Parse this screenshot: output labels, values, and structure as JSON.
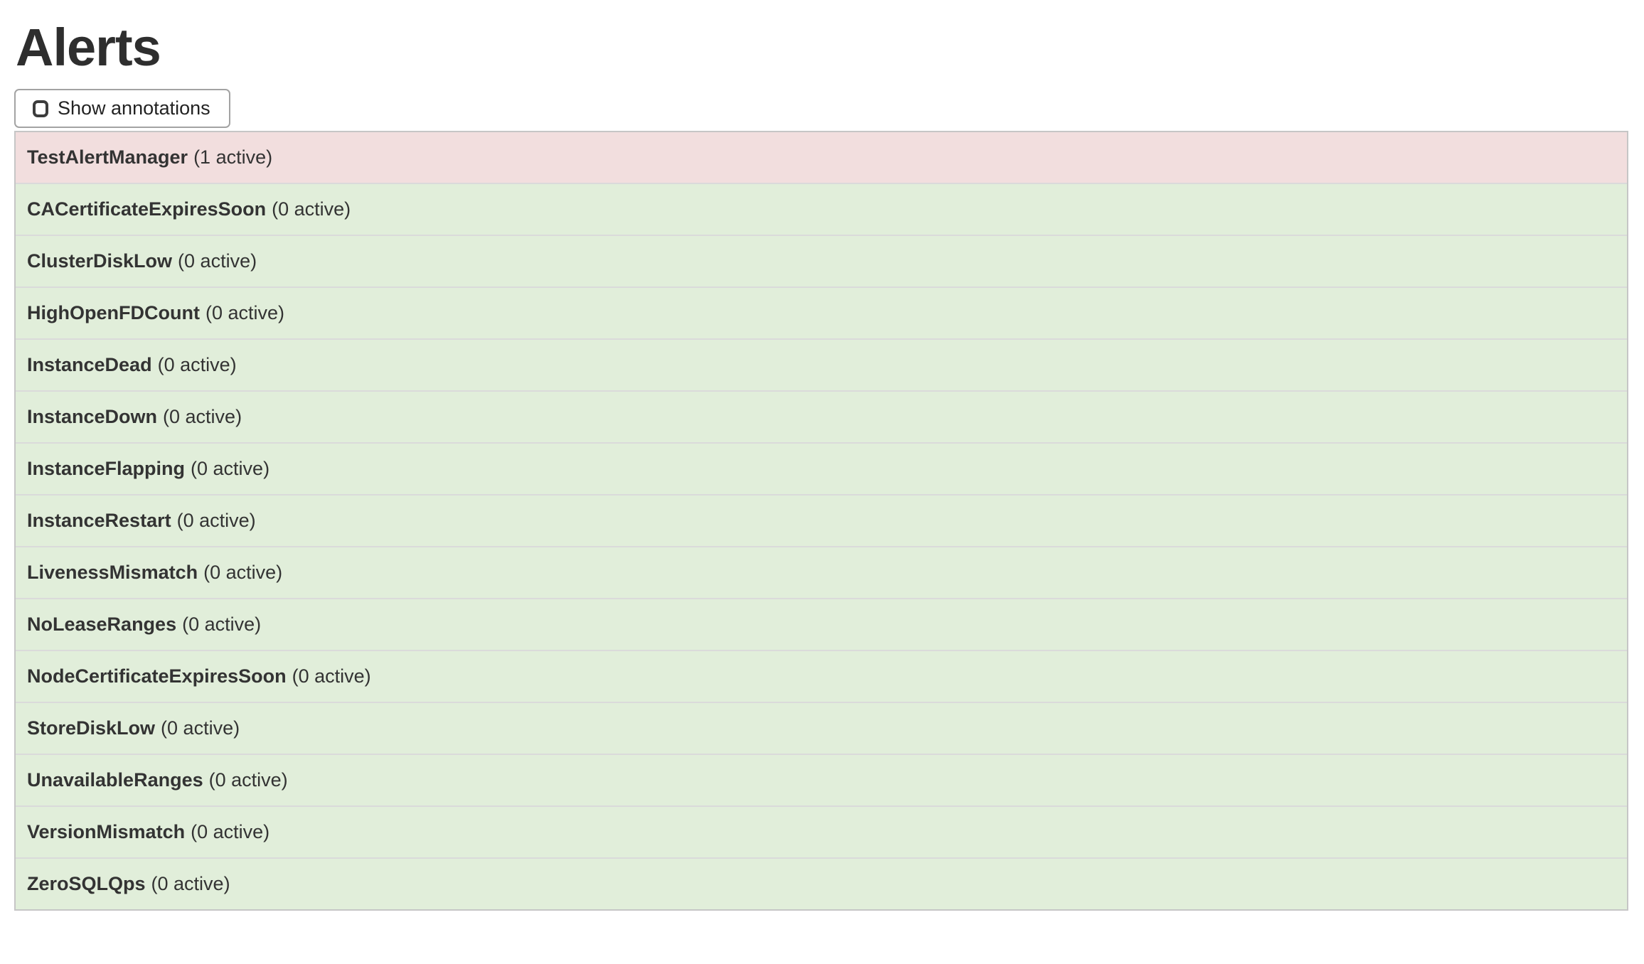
{
  "page": {
    "title": "Alerts"
  },
  "controls": {
    "show_annotations": {
      "label": "Show annotations",
      "checked": false
    }
  },
  "colors": {
    "firing_bg": "#f2dede",
    "inactive_bg": "#e1eeda",
    "text": "#333333"
  },
  "alerts": [
    {
      "name": "TestAlertManager",
      "active_count": 1,
      "count_label": "(1 active)",
      "state": "firing"
    },
    {
      "name": "CACertificateExpiresSoon",
      "active_count": 0,
      "count_label": "(0 active)",
      "state": "inactive"
    },
    {
      "name": "ClusterDiskLow",
      "active_count": 0,
      "count_label": "(0 active)",
      "state": "inactive"
    },
    {
      "name": "HighOpenFDCount",
      "active_count": 0,
      "count_label": "(0 active)",
      "state": "inactive"
    },
    {
      "name": "InstanceDead",
      "active_count": 0,
      "count_label": "(0 active)",
      "state": "inactive"
    },
    {
      "name": "InstanceDown",
      "active_count": 0,
      "count_label": "(0 active)",
      "state": "inactive"
    },
    {
      "name": "InstanceFlapping",
      "active_count": 0,
      "count_label": "(0 active)",
      "state": "inactive"
    },
    {
      "name": "InstanceRestart",
      "active_count": 0,
      "count_label": "(0 active)",
      "state": "inactive"
    },
    {
      "name": "LivenessMismatch",
      "active_count": 0,
      "count_label": "(0 active)",
      "state": "inactive"
    },
    {
      "name": "NoLeaseRanges",
      "active_count": 0,
      "count_label": "(0 active)",
      "state": "inactive"
    },
    {
      "name": "NodeCertificateExpiresSoon",
      "active_count": 0,
      "count_label": "(0 active)",
      "state": "inactive"
    },
    {
      "name": "StoreDiskLow",
      "active_count": 0,
      "count_label": "(0 active)",
      "state": "inactive"
    },
    {
      "name": "UnavailableRanges",
      "active_count": 0,
      "count_label": "(0 active)",
      "state": "inactive"
    },
    {
      "name": "VersionMismatch",
      "active_count": 0,
      "count_label": "(0 active)",
      "state": "inactive"
    },
    {
      "name": "ZeroSQLQps",
      "active_count": 0,
      "count_label": "(0 active)",
      "state": "inactive"
    }
  ]
}
